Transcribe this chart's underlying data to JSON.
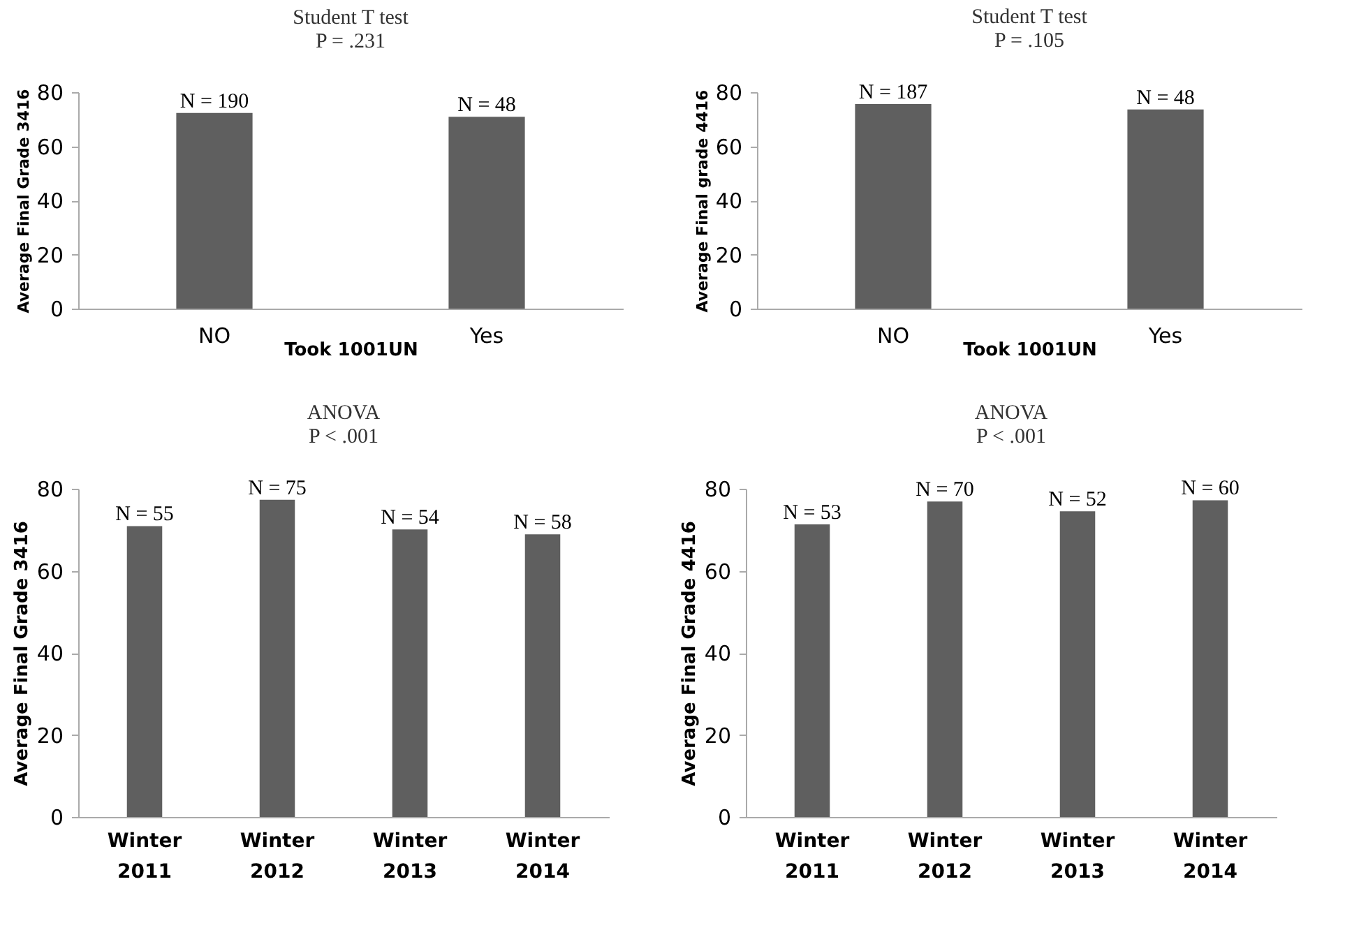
{
  "chart_data": [
    {
      "type": "bar",
      "title": "Student T test",
      "subtitle": "P = .231",
      "xlabel": "Took 1001UN",
      "ylabel": "Average Final Grade 3416",
      "categories": [
        "NO",
        "Yes"
      ],
      "values": [
        72.3,
        70.9
      ],
      "color": "#5f5f5f",
      "ylim": [
        0,
        80
      ],
      "yticks": [
        0,
        20,
        40,
        60,
        80
      ],
      "grid": false,
      "annotations": [
        {
          "text": "N = 190",
          "x": "NO",
          "y": 72.3
        },
        {
          "text": "N = 48",
          "x": "Yes",
          "y": 70.9
        }
      ]
    },
    {
      "type": "bar",
      "title": "Student T test",
      "subtitle": "P = .105",
      "xlabel": "Took 1001UN",
      "ylabel": "Average Final grade 4416",
      "categories": [
        "NO",
        "Yes"
      ],
      "values": [
        75.6,
        73.6
      ],
      "color": "#5f5f5f",
      "ylim": [
        0,
        80
      ],
      "yticks": [
        0,
        20,
        40,
        60,
        80
      ],
      "grid": false,
      "annotations": [
        {
          "text": "N = 187",
          "x": "NO",
          "y": 75.6
        },
        {
          "text": "N = 48",
          "x": "Yes",
          "y": 73.6
        }
      ]
    },
    {
      "type": "bar",
      "title": "ANOVA",
      "subtitle": "P < .001",
      "ylabel": "Average Final Grade 3416",
      "categories": [
        "Winter 2011",
        "Winter 2012",
        "Winter 2013",
        "Winter 2014"
      ],
      "values": [
        70.9,
        77.3,
        70.1,
        68.9
      ],
      "color": "#5f5f5f",
      "ylim": [
        0,
        80
      ],
      "yticks": [
        0,
        20,
        40,
        60,
        80
      ],
      "grid": false,
      "annotations": [
        {
          "text": "N = 55",
          "x": "Winter 2011",
          "y": 70.9
        },
        {
          "text": "N = 75",
          "x": "Winter 2012",
          "y": 77.3
        },
        {
          "text": "N = 54",
          "x": "Winter 2013",
          "y": 70.1
        },
        {
          "text": "N = 58",
          "x": "Winter 2014",
          "y": 68.9
        }
      ]
    },
    {
      "type": "bar",
      "title": "ANOVA",
      "subtitle": "P < .001",
      "ylabel": "Average Final Grade 4416",
      "categories": [
        "Winter 2011",
        "Winter 2012",
        "Winter 2013",
        "Winter 2014"
      ],
      "values": [
        71.3,
        76.9,
        74.5,
        77.2
      ],
      "color": "#5f5f5f",
      "ylim": [
        0,
        80
      ],
      "yticks": [
        0,
        20,
        40,
        60,
        80
      ],
      "grid": false,
      "annotations": [
        {
          "text": "N = 53",
          "x": "Winter 2011",
          "y": 71.3
        },
        {
          "text": "N = 70",
          "x": "Winter 2012",
          "y": 76.9
        },
        {
          "text": "N = 52",
          "x": "Winter 2013",
          "y": 74.5
        },
        {
          "text": "N = 60",
          "x": "Winter 2014",
          "y": 77.2
        }
      ]
    }
  ]
}
